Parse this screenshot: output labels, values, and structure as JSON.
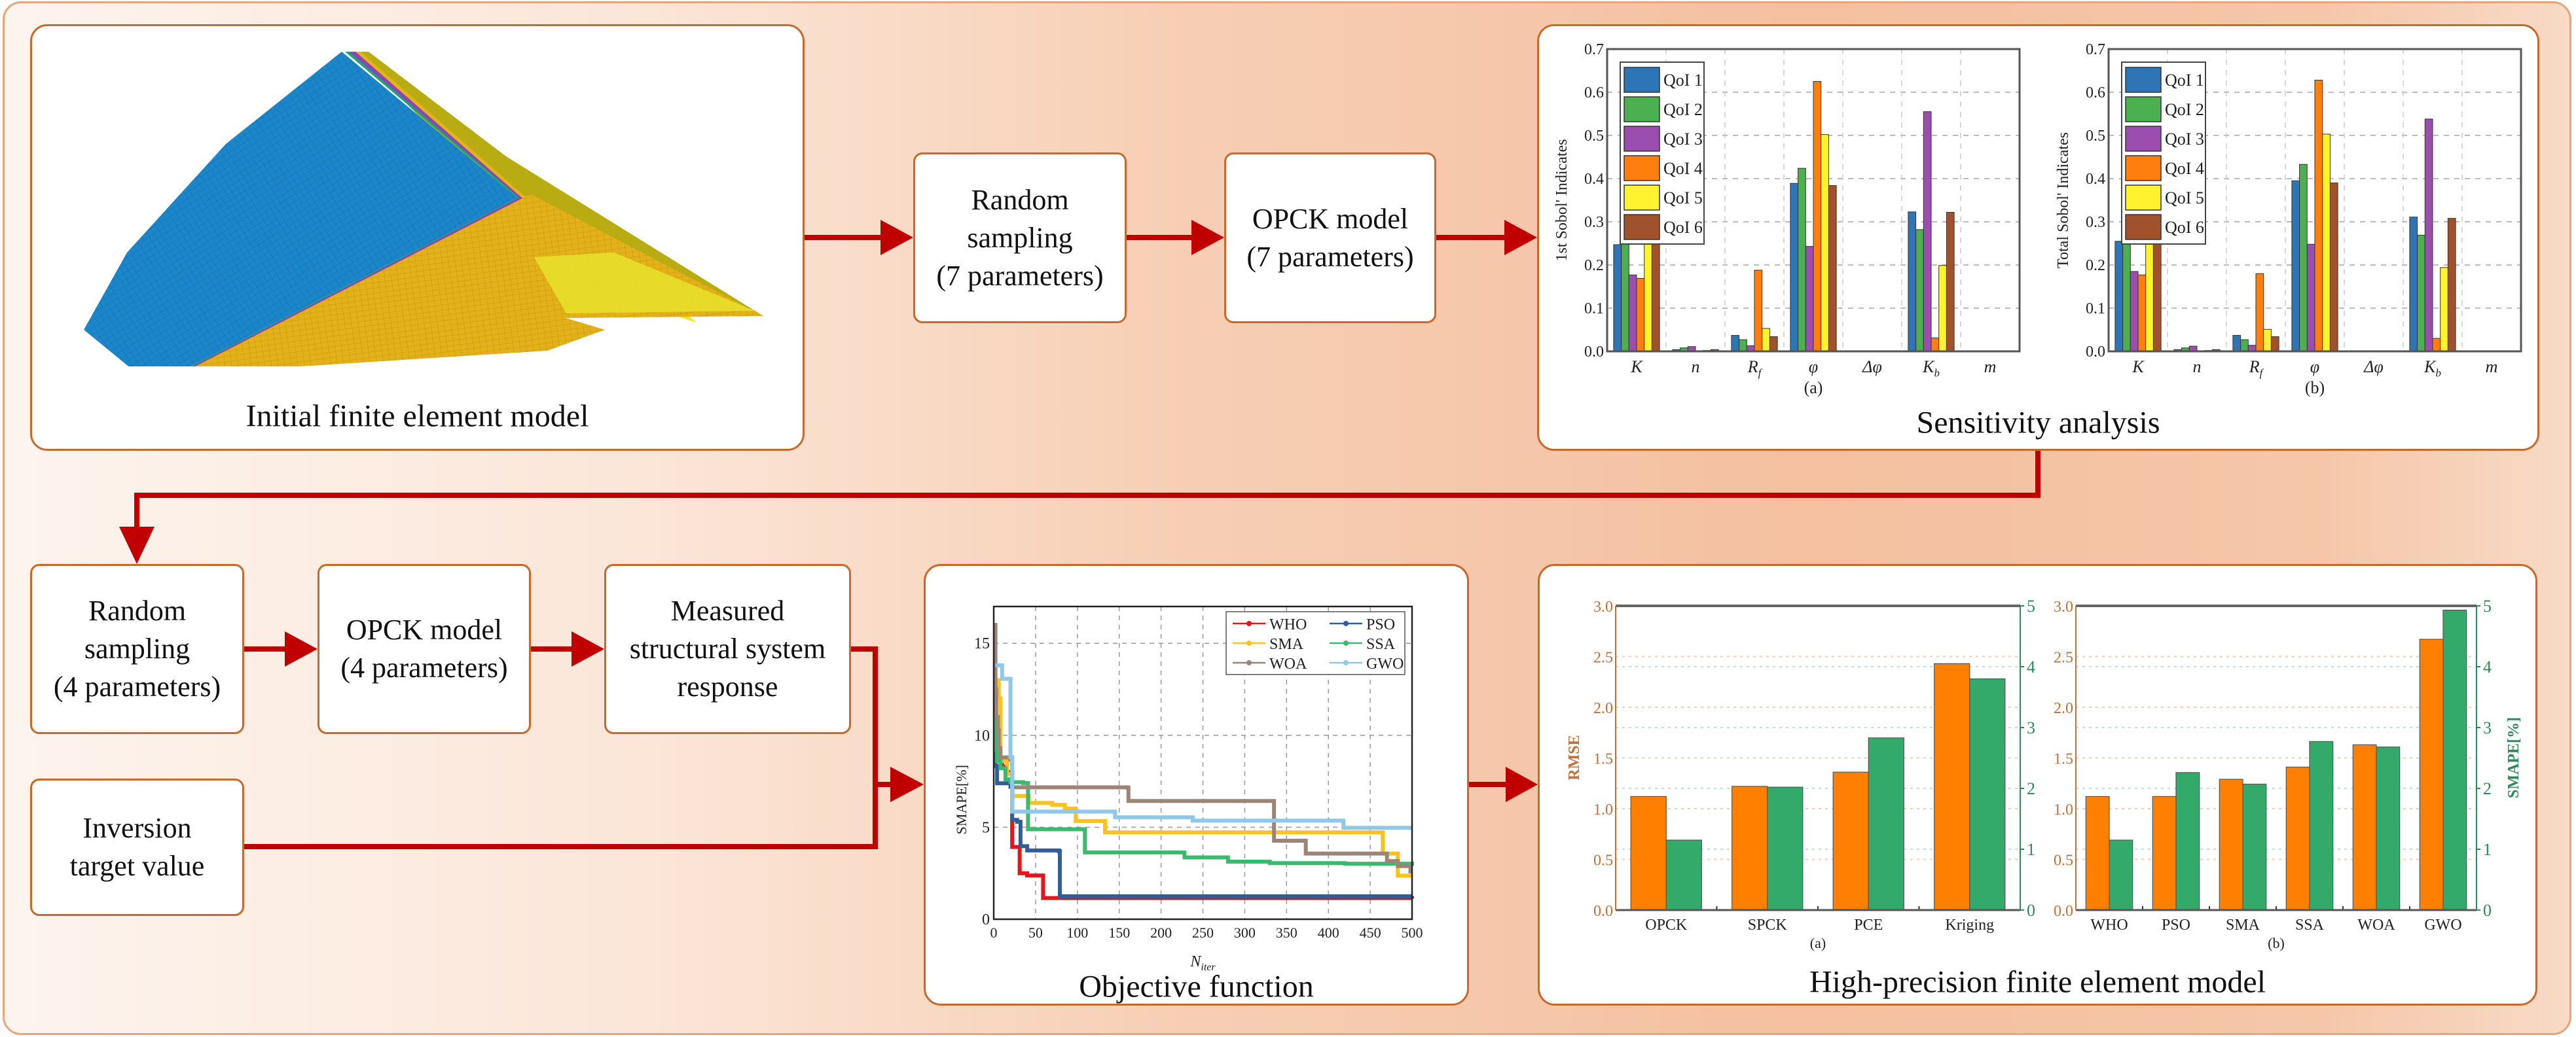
{
  "colors": {
    "arrow": "#C00000",
    "box_border": "#C8682A",
    "qoi": [
      "#2E75B6",
      "#4CAF50",
      "#9B4EAD",
      "#FF7F0E",
      "#FFF22E",
      "#A0522D"
    ],
    "rmse": "#FF7F00",
    "smape": "#33A96A",
    "rmse_axis": "#C0703A",
    "smape_axis": "#2E8B57"
  },
  "panels": {
    "initial_model": {
      "title": "Initial finite element model"
    },
    "sensitivity": {
      "title": "Sensitivity analysis"
    },
    "objective": {
      "title": "Objective function"
    },
    "high_precision": {
      "title": "High-precision finite element model"
    }
  },
  "boxes": {
    "random_sampling_7": {
      "line1": "Random",
      "line2": "sampling",
      "line3": "(7 parameters)"
    },
    "opck_model_7": {
      "line1": "OPCK model",
      "line2": "(7 parameters)"
    },
    "random_sampling_4": {
      "line1": "Random",
      "line2": "sampling",
      "line3": "(4 parameters)"
    },
    "opck_model_4": {
      "line1": "OPCK model",
      "line2": "(4 parameters)"
    },
    "measured_response": {
      "line1": "Measured",
      "line2": "structural system",
      "line3": "response"
    },
    "inversion_target": {
      "line1": "Inversion",
      "line2": "target value"
    }
  },
  "chart_data": [
    {
      "id": "sobol_first",
      "type": "bar",
      "title": "",
      "subtitle": "(a)",
      "xlabel": "",
      "ylabel": "1st Sobol' Indicates",
      "ylim": [
        0,
        0.7
      ],
      "yticks": [
        "0.0",
        "0.1",
        "0.2",
        "0.3",
        "0.4",
        "0.5",
        "0.6",
        "0.7"
      ],
      "grid": true,
      "legend_position": "upper left",
      "categories": [
        "K",
        "n",
        "Rf",
        "φ",
        "Δφ",
        "Kb",
        "m"
      ],
      "series": [
        {
          "name": "QoI 1",
          "values": [
            0.247,
            0.004,
            0.037,
            0.389,
            0.001,
            0.323,
            0.0
          ]
        },
        {
          "name": "QoI 2",
          "values": [
            0.257,
            0.008,
            0.027,
            0.424,
            0.001,
            0.282,
            0.0
          ]
        },
        {
          "name": "QoI 3",
          "values": [
            0.177,
            0.011,
            0.013,
            0.243,
            0.001,
            0.555,
            0.0
          ]
        },
        {
          "name": "QoI 4",
          "values": [
            0.169,
            0.001,
            0.188,
            0.625,
            0.0,
            0.031,
            0.0
          ]
        },
        {
          "name": "QoI 5",
          "values": [
            0.257,
            0.002,
            0.053,
            0.502,
            0.0,
            0.199,
            0.0
          ]
        },
        {
          "name": "QoI 6",
          "values": [
            0.255,
            0.004,
            0.034,
            0.384,
            0.001,
            0.322,
            0.0
          ]
        }
      ]
    },
    {
      "id": "sobol_total",
      "type": "bar",
      "title": "",
      "subtitle": "(b)",
      "xlabel": "",
      "ylabel": "Total Sobol' Indicates",
      "ylim": [
        0,
        0.7
      ],
      "yticks": [
        "0.0",
        "0.1",
        "0.2",
        "0.3",
        "0.4",
        "0.5",
        "0.6",
        "0.7"
      ],
      "grid": true,
      "legend_position": "upper left",
      "categories": [
        "K",
        "n",
        "Rf",
        "φ",
        "Δφ",
        "Kb",
        "m"
      ],
      "series": [
        {
          "name": "QoI 1",
          "values": [
            0.255,
            0.004,
            0.037,
            0.395,
            0.001,
            0.311,
            0.0
          ]
        },
        {
          "name": "QoI 2",
          "values": [
            0.265,
            0.008,
            0.027,
            0.433,
            0.001,
            0.269,
            0.0
          ]
        },
        {
          "name": "QoI 3",
          "values": [
            0.185,
            0.012,
            0.014,
            0.248,
            0.001,
            0.538,
            0.0
          ]
        },
        {
          "name": "QoI 4",
          "values": [
            0.177,
            0.001,
            0.18,
            0.628,
            0.0,
            0.03,
            0.0
          ]
        },
        {
          "name": "QoI 5",
          "values": [
            0.261,
            0.002,
            0.051,
            0.503,
            0.0,
            0.194,
            0.0
          ]
        },
        {
          "name": "QoI 6",
          "values": [
            0.263,
            0.004,
            0.034,
            0.39,
            0.001,
            0.308,
            0.0
          ]
        }
      ]
    },
    {
      "id": "objective_convergence",
      "type": "line",
      "title": "",
      "xlabel": "N_iter",
      "ylabel": "SMAPE[%]",
      "xlim": [
        0,
        500
      ],
      "ylim": [
        0,
        17
      ],
      "xticks": [
        0,
        50,
        100,
        150,
        200,
        250,
        300,
        350,
        400,
        450,
        500
      ],
      "yticks": [
        0,
        5,
        10,
        15
      ],
      "grid": true,
      "legend_position": "upper right",
      "series": [
        {
          "name": "WHO",
          "color": "#E8141B",
          "marker": "square",
          "x": [
            0,
            10,
            14,
            20,
            22,
            31,
            40,
            59,
            500
          ],
          "y": [
            8.64,
            8.3,
            8.0,
            7.92,
            3.93,
            2.5,
            2.38,
            1.15,
            1.12
          ]
        },
        {
          "name": "PSO",
          "color": "#2F5E9A",
          "marker": "circle",
          "x": [
            0,
            2,
            4,
            20,
            22,
            28,
            32,
            40,
            78,
            79,
            500
          ],
          "y": [
            14.2,
            8.33,
            7.39,
            7.2,
            5.4,
            5.3,
            3.97,
            3.74,
            3.7,
            1.25,
            1.25
          ]
        },
        {
          "name": "SMA",
          "color": "#F9C21E",
          "marker": "triangle-up",
          "x": [
            3,
            6,
            8,
            16,
            22,
            42,
            70,
            85,
            98,
            133,
            465,
            483,
            500
          ],
          "y": [
            13.0,
            12.0,
            8.6,
            7.9,
            6.7,
            6.32,
            6.22,
            6.02,
            5.34,
            4.72,
            3.57,
            2.37,
            2.37
          ]
        },
        {
          "name": "SSA",
          "color": "#3CB96E",
          "marker": "triangle-down",
          "x": [
            0,
            2,
            4,
            8,
            14,
            20,
            35,
            41,
            109,
            228,
            280,
            330,
            420,
            500
          ],
          "y": [
            11.5,
            9.2,
            8.6,
            8.2,
            7.6,
            7.45,
            7.4,
            4.89,
            3.63,
            3.36,
            3.13,
            3.05,
            3.02,
            2.9
          ]
        },
        {
          "name": "WOA",
          "color": "#9C8577",
          "marker": "diamond",
          "x": [
            0,
            2,
            3,
            5,
            6,
            8,
            20,
            22,
            160,
            161,
            335,
            373,
            470,
            483,
            498,
            500
          ],
          "y": [
            16.0,
            12.5,
            11.0,
            10.3,
            9.3,
            8.8,
            8.67,
            7.17,
            7.15,
            6.43,
            4.27,
            3.57,
            3.16,
            2.89,
            2.6,
            2.6
          ]
        },
        {
          "name": "GWO",
          "color": "#90C8EA",
          "marker": "triangle-left",
          "x": [
            2,
            10,
            20,
            22,
            145,
            238,
            418,
            500
          ],
          "y": [
            13.8,
            13.07,
            8.81,
            5.85,
            5.54,
            5.36,
            4.97,
            4.97
          ]
        }
      ]
    },
    {
      "id": "surrogate_comparison",
      "type": "bar",
      "title": "",
      "subtitle": "(a)",
      "xlabel": "",
      "ylabel": "RMSE",
      "ylabel_right": "SMAPE[%]",
      "ylim": [
        0,
        3.0
      ],
      "ylim_right": [
        0,
        5
      ],
      "yticks": [
        "0.0",
        "0.5",
        "1.0",
        "1.5",
        "2.0",
        "2.5",
        "3.0"
      ],
      "yticks_right": [
        "0",
        "1",
        "2",
        "3",
        "4",
        "5"
      ],
      "grid": true,
      "categories": [
        "OPCK",
        "SPCK",
        "PCE",
        "Kriging"
      ],
      "series": [
        {
          "name": "RMSE",
          "axis": "left",
          "values": [
            1.12,
            1.22,
            1.36,
            2.43
          ]
        },
        {
          "name": "SMAPE[%]",
          "axis": "right",
          "values": [
            1.15,
            2.02,
            2.83,
            3.8
          ]
        }
      ]
    },
    {
      "id": "optimizer_comparison",
      "type": "bar",
      "title": "",
      "subtitle": "(b)",
      "xlabel": "",
      "ylabel": "RMSE",
      "ylabel_right": "SMAPE[%]",
      "ylim": [
        0,
        3.0
      ],
      "ylim_right": [
        0,
        5
      ],
      "yticks": [
        "0.0",
        "0.5",
        "1.0",
        "1.5",
        "2.0",
        "2.5",
        "3.0"
      ],
      "yticks_right": [
        "0",
        "1",
        "2",
        "3",
        "4",
        "5"
      ],
      "grid": true,
      "categories": [
        "WHO",
        "PSO",
        "SMA",
        "SSA",
        "WOA",
        "GWO"
      ],
      "series": [
        {
          "name": "RMSE",
          "axis": "left",
          "values": [
            1.12,
            1.12,
            1.29,
            1.41,
            1.63,
            2.67
          ]
        },
        {
          "name": "SMAPE[%]",
          "axis": "right",
          "values": [
            1.15,
            2.26,
            2.07,
            2.77,
            2.68,
            4.93
          ]
        }
      ]
    }
  ]
}
